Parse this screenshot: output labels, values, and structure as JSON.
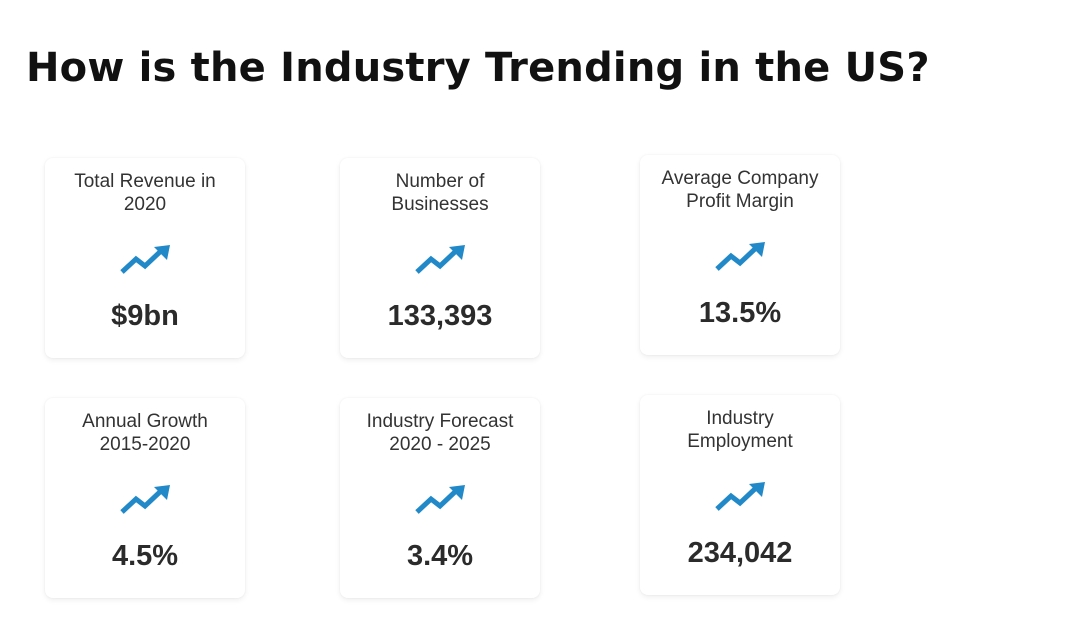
{
  "page": {
    "title": "How is the Industry Trending in the US?"
  },
  "colors": {
    "trend_icon": "#2289c9",
    "value_text": "#2b2b2b",
    "label_text": "#333333"
  },
  "cards": [
    {
      "label_lines": [
        "Total Revenue in",
        "2020"
      ],
      "value": "$9bn",
      "icon": "trending-up-icon"
    },
    {
      "label_lines": [
        "Number of",
        "Businesses"
      ],
      "value": "133,393",
      "icon": "trending-up-icon"
    },
    {
      "label_lines": [
        "Average Company",
        "Profit Margin"
      ],
      "value": "13.5%",
      "icon": "trending-up-icon"
    },
    {
      "label_lines": [
        "Annual Growth",
        "2015-2020"
      ],
      "value": "4.5%",
      "icon": "trending-up-icon"
    },
    {
      "label_lines": [
        "Industry Forecast",
        "2020 - 2025"
      ],
      "value": "3.4%",
      "icon": "trending-up-icon"
    },
    {
      "label_lines": [
        "Industry",
        "Employment"
      ],
      "value": "234,042",
      "icon": "trending-up-icon"
    }
  ]
}
